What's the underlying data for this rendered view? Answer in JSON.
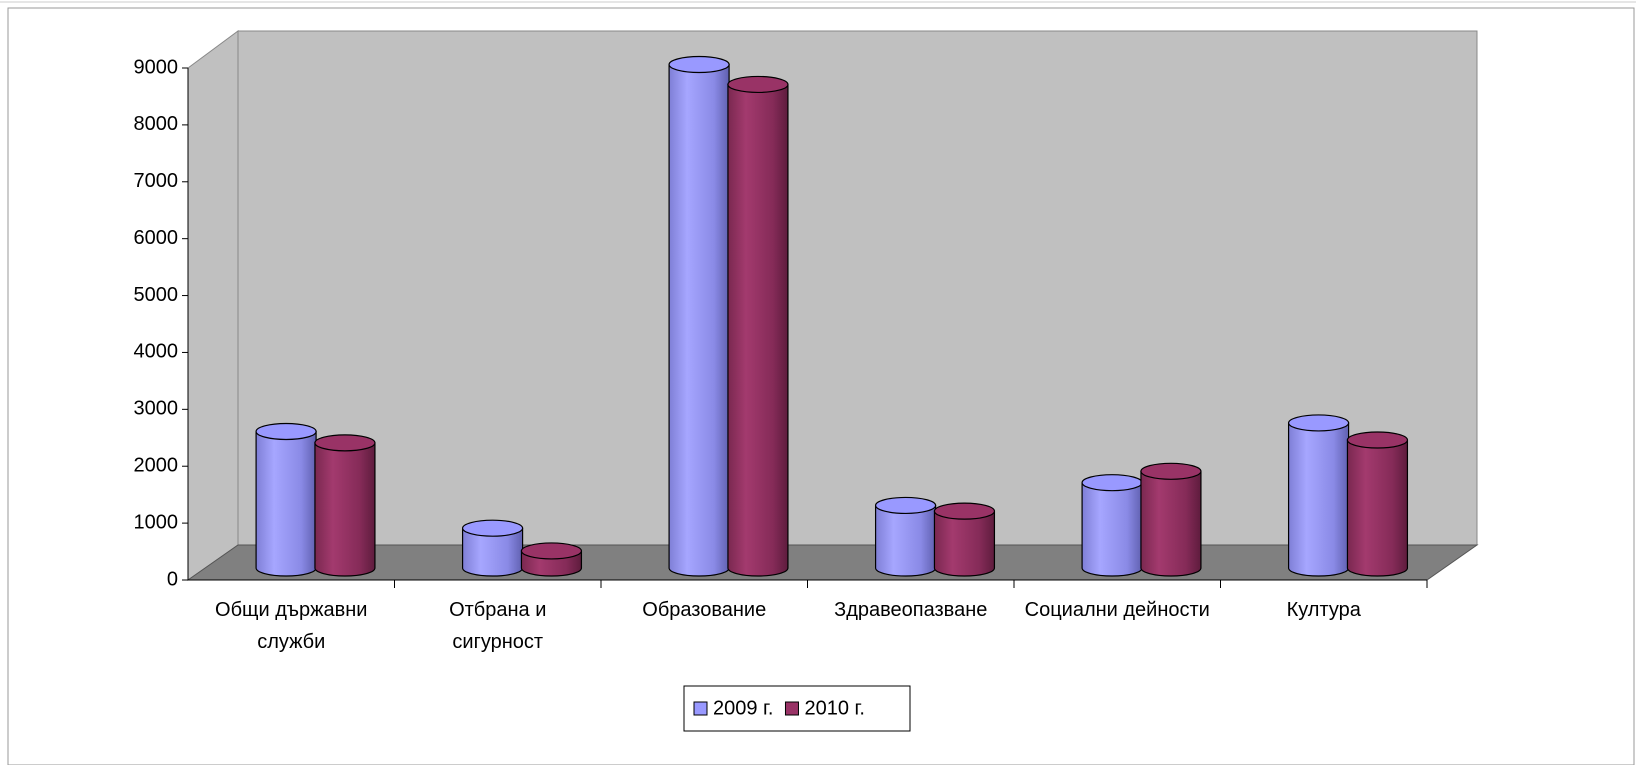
{
  "chart_data": {
    "type": "bar3d",
    "categories": [
      "Общи държавни служби",
      "Отбрана и сигурност",
      "Образование",
      "Здравеопазване",
      "Социални дейности",
      "Култура"
    ],
    "series": [
      {
        "name": "2009 г.",
        "color": "#9999ff",
        "values": [
          2400,
          700,
          8850,
          1100,
          1500,
          2550
        ]
      },
      {
        "name": "2010 г.",
        "color": "#993366",
        "values": [
          2200,
          300,
          8500,
          1000,
          1700,
          2250
        ]
      }
    ],
    "ylim": [
      0,
      9000
    ],
    "yticks": [
      0,
      1000,
      2000,
      3000,
      4000,
      5000,
      6000,
      7000,
      8000,
      9000
    ],
    "legend": "bottom"
  }
}
